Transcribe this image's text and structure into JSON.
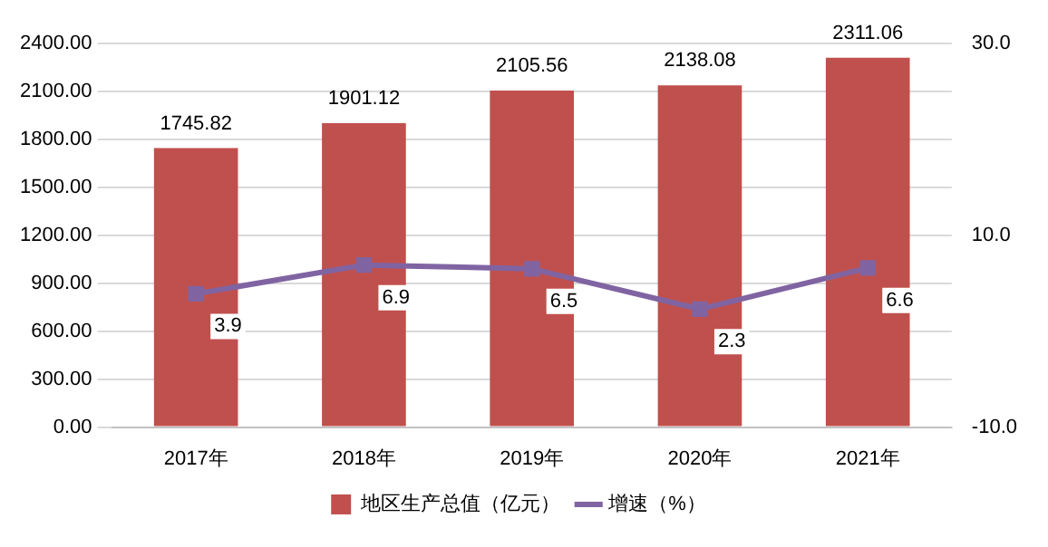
{
  "chart_data": {
    "type": "bar",
    "categories": [
      "2017年",
      "2018年",
      "2019年",
      "2020年",
      "2021年"
    ],
    "series": [
      {
        "name": "地区生产总值（亿元）",
        "color": "#c0504d",
        "values": [
          1745.82,
          1901.12,
          2105.56,
          2138.08,
          2311.06
        ]
      },
      {
        "name": "增速（%）",
        "type": "line",
        "axis": "y2",
        "color": "#8064a2",
        "values": [
          3.9,
          6.9,
          6.5,
          2.3,
          6.6
        ]
      }
    ],
    "ylim": [
      0,
      2400
    ],
    "yticks": [
      {
        "value": 0,
        "label": "0.00"
      },
      {
        "value": 300,
        "label": "300.00"
      },
      {
        "value": 600,
        "label": "600.00"
      },
      {
        "value": 900,
        "label": "900.00"
      },
      {
        "value": 1200,
        "label": "1200.00"
      },
      {
        "value": 1500,
        "label": "1500.00"
      },
      {
        "value": 1800,
        "label": "1800.00"
      },
      {
        "value": 2100,
        "label": "2100.00"
      },
      {
        "value": 2400,
        "label": "2400.00"
      }
    ],
    "y2lim": [
      -10,
      30
    ],
    "y2ticks": [
      {
        "value": -10,
        "label": "-10.0"
      },
      {
        "value": 10,
        "label": "10.0"
      },
      {
        "value": 30,
        "label": "30.0"
      }
    ],
    "grid": "y",
    "legend": "bottom",
    "marker": "square",
    "data_labels": true
  }
}
